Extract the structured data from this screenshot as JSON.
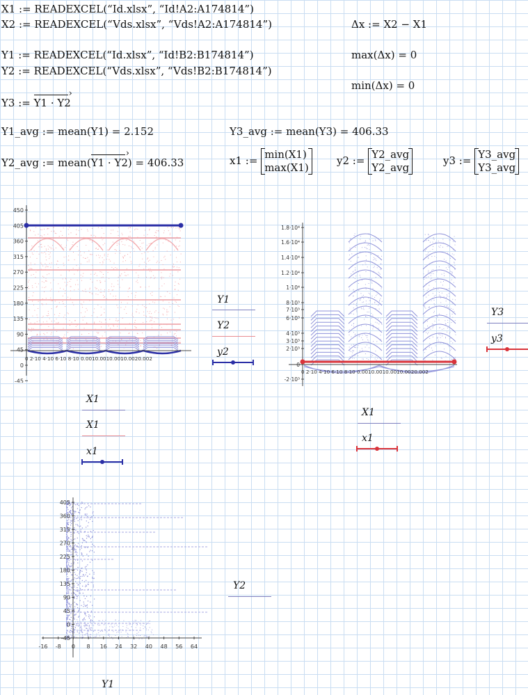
{
  "colors": {
    "blue": "#2a2ea6",
    "red": "#d9333a",
    "pink": "#f2a5a9",
    "lavender": "#8d90d9",
    "grid": "#c9ddf2"
  },
  "eq": {
    "x1_def": "X1 := READEXCEL(“Id.xlsx”, “Id!A2:A174814”)",
    "x2_def": "X2 := READEXCEL(“Vds.xlsx”, “Vds!A2:A174814”)",
    "dx_def": "Δx := X2 − X1",
    "y1_def": "Y1 := READEXCEL(“Id.xlsx”, “Id!B2:B174814”)",
    "y2_def": "Y2 := READEXCEL(“Vds.xlsx”, “Vds!B2:B174814”)",
    "max_dx": "max(Δx) = 0",
    "min_dx": "min(Δx) = 0",
    "y3_lhs": "Y3 :=",
    "y3_rhs": "Y1 · Y2",
    "y1_avg": "Y1_avg := mean(Y1) = 2.152",
    "y3_avg": "Y3_avg := mean(Y3) = 406.33",
    "y2_avg_lhs": "Y2_avg := mean(",
    "y2_avg_vec": "Y1 · Y2",
    "y2_avg_rhs": ") = 406.33",
    "x1_lhs": "x1 :=",
    "x1_top": "min(X1)",
    "x1_bot": "max(X1)",
    "y2v_lhs": "y2 :=",
    "y2v_top": "Y2_avg",
    "y2v_bot": "Y2_avg",
    "y3v_lhs": "y3 :=",
    "y3v_top": "Y3_avg",
    "y3v_bot": "Y3_avg"
  },
  "plot1": {
    "y_ticks": [
      "450",
      "405",
      "360",
      "315",
      "270",
      "225",
      "180",
      "135",
      "90",
      "45",
      "0",
      "-45"
    ],
    "x_ticks": [
      "0",
      "2·10⁻⁴",
      "4·10⁻⁴",
      "6·10⁻⁴",
      "8·10⁻⁴",
      "0.001",
      "0.0012",
      "0.0014",
      "0.0016",
      "0.0018",
      "0.002"
    ],
    "x_ticks_render": "0  2·10 4·10 6·10 8·10 0.0010.0010.0010.0020.002",
    "legend_y": [
      "Y1",
      "Y2",
      "y2"
    ],
    "legend_x": [
      "X1",
      "X1",
      "x1"
    ]
  },
  "plot2": {
    "y_ticks": [
      "1.8·10⁴",
      "1.6·10⁴",
      "1.4·10⁴",
      "1.2·10⁴",
      "1·10⁴",
      "8·10³",
      "7·10³",
      "6·10³",
      "4·10³",
      "3·10³",
      "2·10³",
      "0",
      "-2·10³"
    ],
    "x_ticks_render": "0  2·10 4·10 6·10 8·10 0.0010.0010.0010.0020.002",
    "legend_y": [
      "Y3",
      "y3"
    ],
    "legend_x": [
      "X1",
      "x1"
    ]
  },
  "plot3": {
    "y_ticks": [
      "405",
      "360",
      "315",
      "270",
      "225",
      "180",
      "135",
      "90",
      "45",
      "0",
      "-45"
    ],
    "x_ticks": [
      "-16",
      "-8",
      "0",
      "8",
      "16",
      "24",
      "32",
      "40",
      "48",
      "56",
      "64"
    ],
    "legend_y": "Y2",
    "legend_x": "Y1"
  }
}
